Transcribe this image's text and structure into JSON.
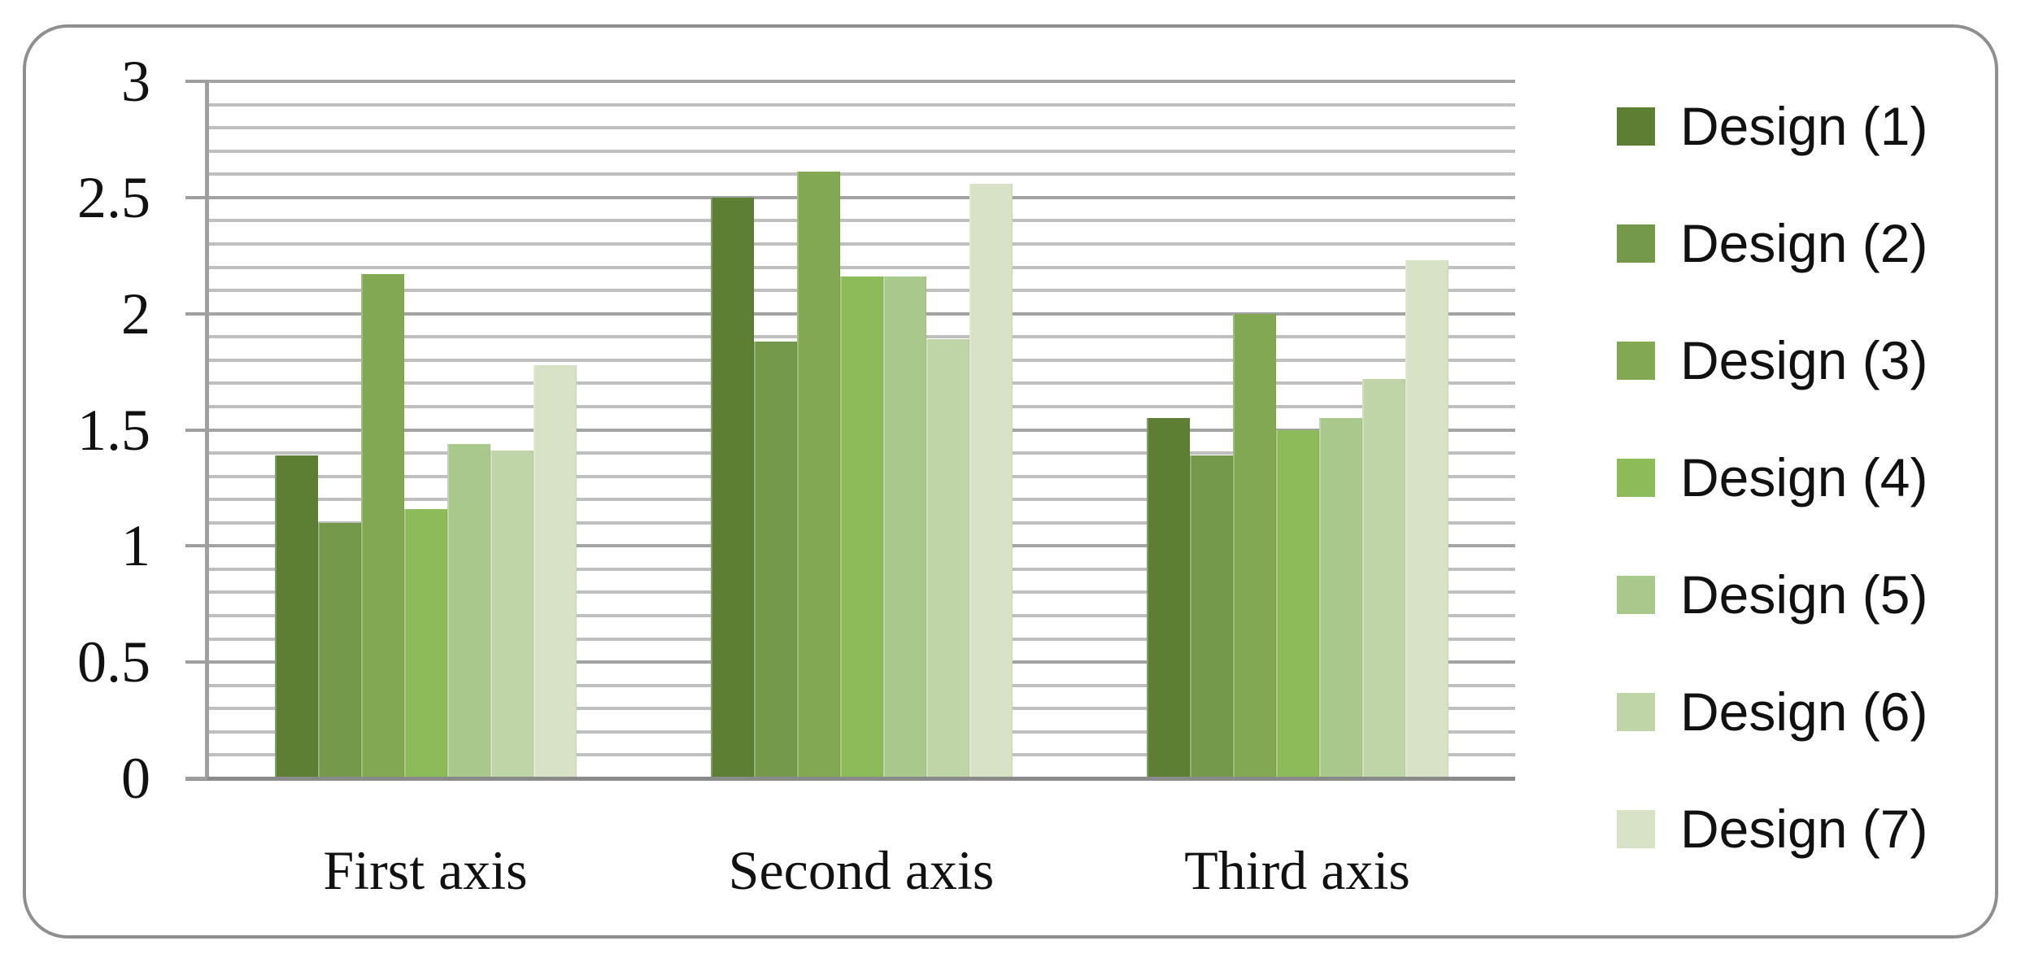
{
  "chart_data": {
    "type": "bar",
    "title": "",
    "categories": [
      "First axis",
      "Second axis",
      "Third axis"
    ],
    "series": [
      {
        "name": "Design (1)",
        "color": "#5c7f33",
        "values": [
          1.39,
          2.5,
          1.55
        ]
      },
      {
        "name": "Design (2)",
        "color": "#74994b",
        "values": [
          1.1,
          1.88,
          1.39
        ]
      },
      {
        "name": "Design (3)",
        "color": "#83a854",
        "values": [
          2.17,
          2.61,
          2.0
        ]
      },
      {
        "name": "Design (4)",
        "color": "#8dbb59",
        "values": [
          1.16,
          2.16,
          1.5
        ]
      },
      {
        "name": "Design (5)",
        "color": "#a9c98c",
        "values": [
          1.44,
          2.16,
          1.55
        ]
      },
      {
        "name": "Design (6)",
        "color": "#c0d5a7",
        "values": [
          1.41,
          1.89,
          1.72
        ]
      },
      {
        "name": "Design (7)",
        "color": "#d7e2c7",
        "values": [
          1.78,
          2.56,
          2.23
        ]
      }
    ],
    "y_axis": {
      "min": 0,
      "max": 3,
      "major_step": 0.5,
      "minor_step": 0.1,
      "tick_labels": [
        "0",
        "0.5",
        "1",
        "1.5",
        "2",
        "2.5",
        "3"
      ]
    },
    "xlabel": "",
    "ylabel": "",
    "grid": {
      "minor_on": true,
      "major_on": true,
      "minor_color": "#bfbfbf",
      "major_color": "#a3a3a3",
      "baseline_color": "#8a8a8a",
      "axis_color": "#9f9f9f"
    },
    "legend_position": "right",
    "frame_border_color": "#8f8f8f"
  }
}
